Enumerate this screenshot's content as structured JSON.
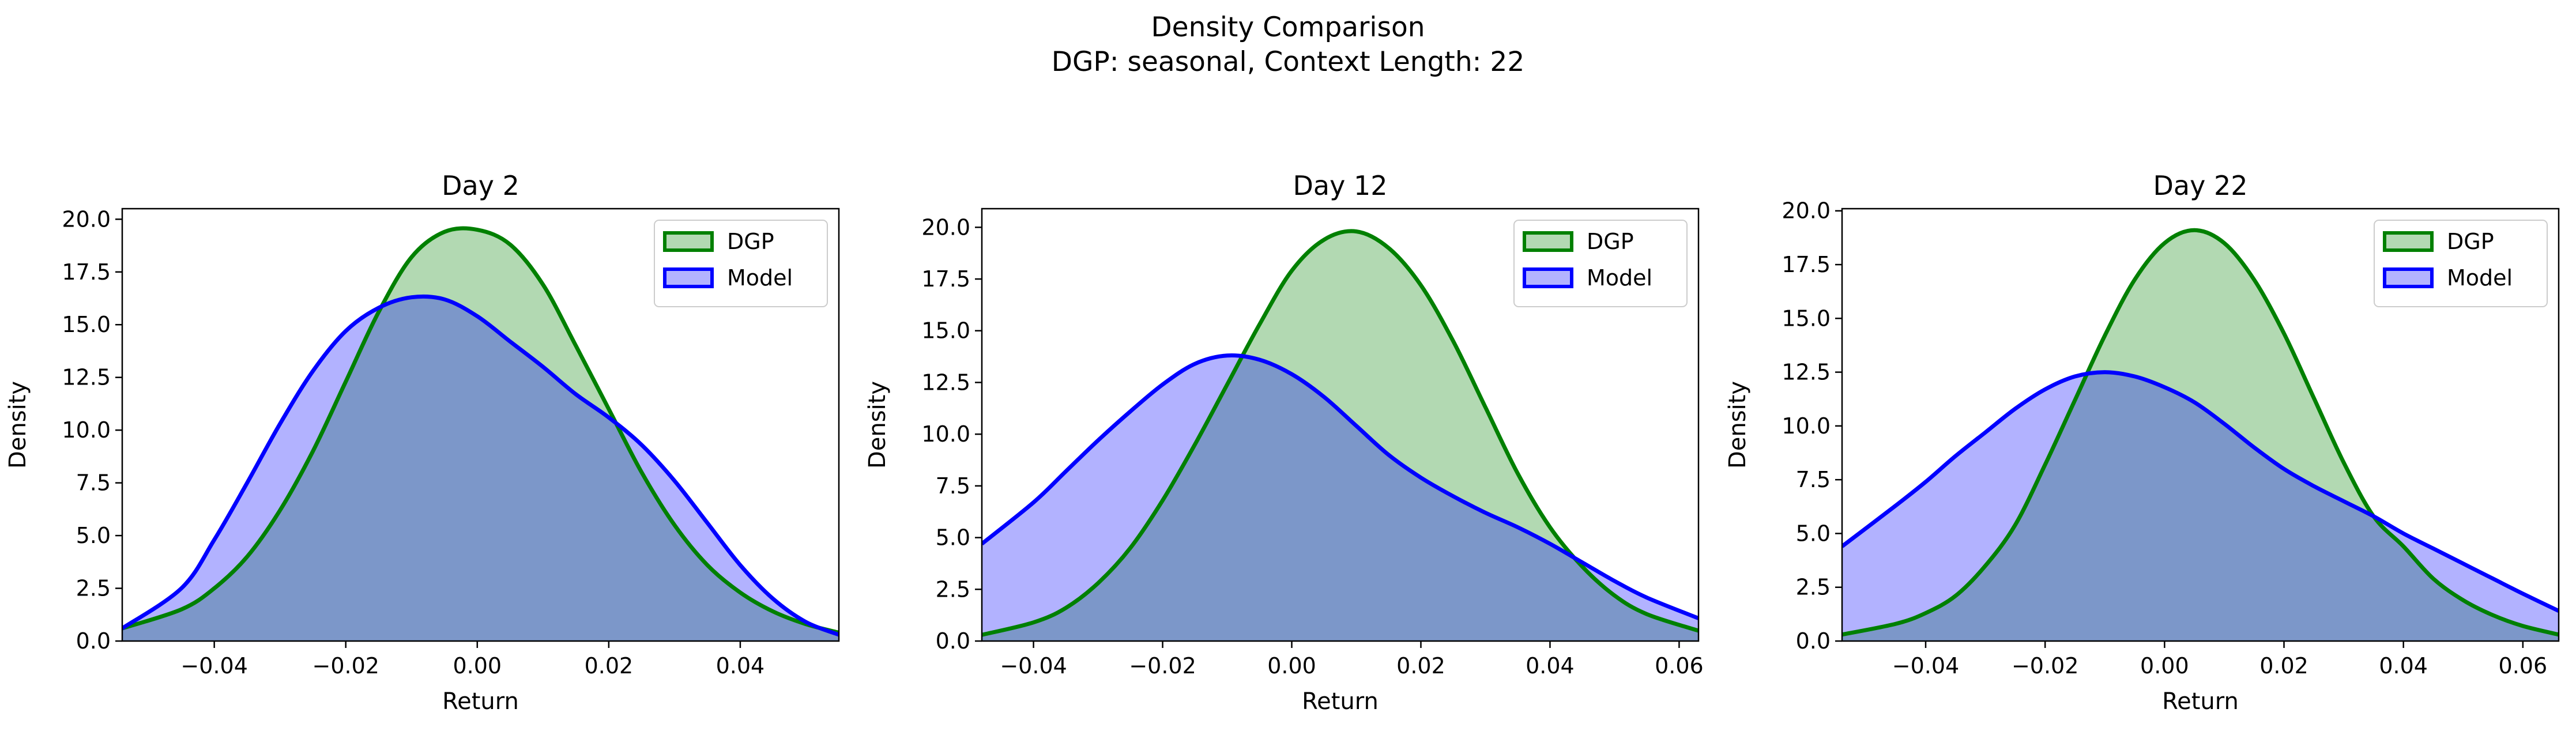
{
  "figure": {
    "title": "Density Comparison",
    "subtitle": "DGP: seasonal, Context Length: 22"
  },
  "colors": {
    "dgp_line": "#008000",
    "dgp_fill": "#b3d9b3",
    "model_line": "#0000ff",
    "model_fill": "#b3b3ff",
    "overlap_fill": "#7c97c9"
  },
  "chart_data": [
    {
      "type": "area",
      "title": "Day 2",
      "xlabel": "Return",
      "ylabel": "Density",
      "xlim": [
        -0.054,
        0.055
      ],
      "ylim": [
        0,
        20.5
      ],
      "xticks": [
        -0.04,
        -0.02,
        0.0,
        0.02,
        0.04
      ],
      "xtick_labels": [
        "−0.04",
        "−0.02",
        "0.00",
        "0.02",
        "0.04"
      ],
      "yticks": [
        0,
        2.5,
        5,
        7.5,
        10,
        12.5,
        15,
        17.5,
        20
      ],
      "ytick_labels": [
        "0.0",
        "2.5",
        "5.0",
        "7.5",
        "10.0",
        "12.5",
        "15.0",
        "17.5",
        "20.0"
      ],
      "legend": "top-right",
      "grid": false,
      "series": [
        {
          "name": "DGP",
          "x": [
            -0.054,
            -0.045,
            -0.04,
            -0.035,
            -0.03,
            -0.025,
            -0.02,
            -0.015,
            -0.01,
            -0.005,
            0.0,
            0.005,
            0.01,
            0.015,
            0.02,
            0.025,
            0.03,
            0.035,
            0.04,
            0.045,
            0.05,
            0.055
          ],
          "values": [
            0.6,
            1.5,
            2.5,
            4.0,
            6.2,
            9.0,
            12.3,
            15.6,
            18.2,
            19.4,
            19.5,
            18.8,
            16.9,
            14.0,
            11.0,
            8.0,
            5.5,
            3.6,
            2.3,
            1.4,
            0.8,
            0.4
          ]
        },
        {
          "name": "Model",
          "x": [
            -0.054,
            -0.045,
            -0.04,
            -0.035,
            -0.03,
            -0.025,
            -0.02,
            -0.015,
            -0.01,
            -0.005,
            0.0,
            0.005,
            0.01,
            0.015,
            0.02,
            0.025,
            0.03,
            0.035,
            0.04,
            0.045,
            0.05,
            0.055
          ],
          "values": [
            0.6,
            2.5,
            4.8,
            7.5,
            10.3,
            12.8,
            14.7,
            15.8,
            16.3,
            16.2,
            15.4,
            14.2,
            13.0,
            11.7,
            10.6,
            9.3,
            7.6,
            5.6,
            3.6,
            2.0,
            0.9,
            0.3
          ]
        }
      ]
    },
    {
      "type": "area",
      "title": "Day 12",
      "xlabel": "Return",
      "ylabel": "Density",
      "xlim": [
        -0.048,
        0.063
      ],
      "ylim": [
        0,
        20.9
      ],
      "xticks": [
        -0.04,
        -0.02,
        0.0,
        0.02,
        0.04,
        0.06
      ],
      "xtick_labels": [
        "−0.04",
        "−0.02",
        "0.00",
        "0.02",
        "0.04",
        "0.06"
      ],
      "yticks": [
        0,
        2.5,
        5,
        7.5,
        10,
        12.5,
        15,
        17.5,
        20
      ],
      "ytick_labels": [
        "0.0",
        "2.5",
        "5.0",
        "7.5",
        "10.0",
        "12.5",
        "15.0",
        "17.5",
        "20.0"
      ],
      "legend": "top-right",
      "grid": false,
      "series": [
        {
          "name": "DGP",
          "x": [
            -0.048,
            -0.04,
            -0.035,
            -0.03,
            -0.025,
            -0.02,
            -0.015,
            -0.01,
            -0.005,
            0.0,
            0.005,
            0.01,
            0.015,
            0.02,
            0.025,
            0.03,
            0.035,
            0.04,
            0.045,
            0.05,
            0.055,
            0.063
          ],
          "values": [
            0.3,
            0.9,
            1.6,
            2.8,
            4.5,
            6.8,
            9.5,
            12.4,
            15.3,
            17.9,
            19.4,
            19.8,
            19.0,
            17.2,
            14.5,
            11.3,
            8.1,
            5.5,
            3.6,
            2.2,
            1.3,
            0.5
          ]
        },
        {
          "name": "Model",
          "x": [
            -0.048,
            -0.04,
            -0.035,
            -0.03,
            -0.025,
            -0.02,
            -0.015,
            -0.01,
            -0.005,
            0.0,
            0.005,
            0.01,
            0.015,
            0.02,
            0.025,
            0.03,
            0.035,
            0.04,
            0.045,
            0.05,
            0.055,
            0.063
          ],
          "values": [
            4.7,
            6.7,
            8.2,
            9.7,
            11.1,
            12.4,
            13.4,
            13.8,
            13.6,
            12.9,
            11.8,
            10.4,
            9.0,
            7.9,
            7.0,
            6.2,
            5.5,
            4.7,
            3.8,
            2.9,
            2.1,
            1.1
          ]
        }
      ]
    },
    {
      "type": "area",
      "title": "Day 22",
      "xlabel": "Return",
      "ylabel": "Density",
      "xlim": [
        -0.054,
        0.066
      ],
      "ylim": [
        0,
        20.1
      ],
      "xticks": [
        -0.04,
        -0.02,
        0.0,
        0.02,
        0.04,
        0.06
      ],
      "xtick_labels": [
        "−0.04",
        "−0.02",
        "0.00",
        "0.02",
        "0.04",
        "0.06"
      ],
      "yticks": [
        0,
        2.5,
        5,
        7.5,
        10,
        12.5,
        15,
        17.5,
        20
      ],
      "ytick_labels": [
        "0.0",
        "2.5",
        "5.0",
        "7.5",
        "10.0",
        "12.5",
        "15.0",
        "17.5",
        "20.0"
      ],
      "legend": "top-right",
      "grid": false,
      "series": [
        {
          "name": "DGP",
          "x": [
            -0.054,
            -0.045,
            -0.04,
            -0.035,
            -0.03,
            -0.025,
            -0.02,
            -0.015,
            -0.01,
            -0.005,
            0.0,
            0.005,
            0.01,
            0.015,
            0.02,
            0.025,
            0.03,
            0.035,
            0.04,
            0.045,
            0.05,
            0.055,
            0.06,
            0.066
          ],
          "values": [
            0.3,
            0.8,
            1.3,
            2.1,
            3.5,
            5.4,
            8.2,
            11.2,
            14.2,
            16.8,
            18.5,
            19.1,
            18.5,
            16.8,
            14.3,
            11.3,
            8.3,
            5.8,
            4.4,
            2.9,
            1.9,
            1.2,
            0.7,
            0.3
          ]
        },
        {
          "name": "Model",
          "x": [
            -0.054,
            -0.045,
            -0.04,
            -0.035,
            -0.03,
            -0.025,
            -0.02,
            -0.015,
            -0.01,
            -0.005,
            0.0,
            0.005,
            0.01,
            0.015,
            0.02,
            0.025,
            0.03,
            0.035,
            0.04,
            0.045,
            0.05,
            0.055,
            0.06,
            0.066
          ],
          "values": [
            4.4,
            6.3,
            7.4,
            8.6,
            9.7,
            10.8,
            11.7,
            12.3,
            12.5,
            12.3,
            11.8,
            11.1,
            10.1,
            9.0,
            8.0,
            7.2,
            6.5,
            5.8,
            5.0,
            4.3,
            3.6,
            2.9,
            2.2,
            1.4
          ]
        }
      ]
    }
  ]
}
